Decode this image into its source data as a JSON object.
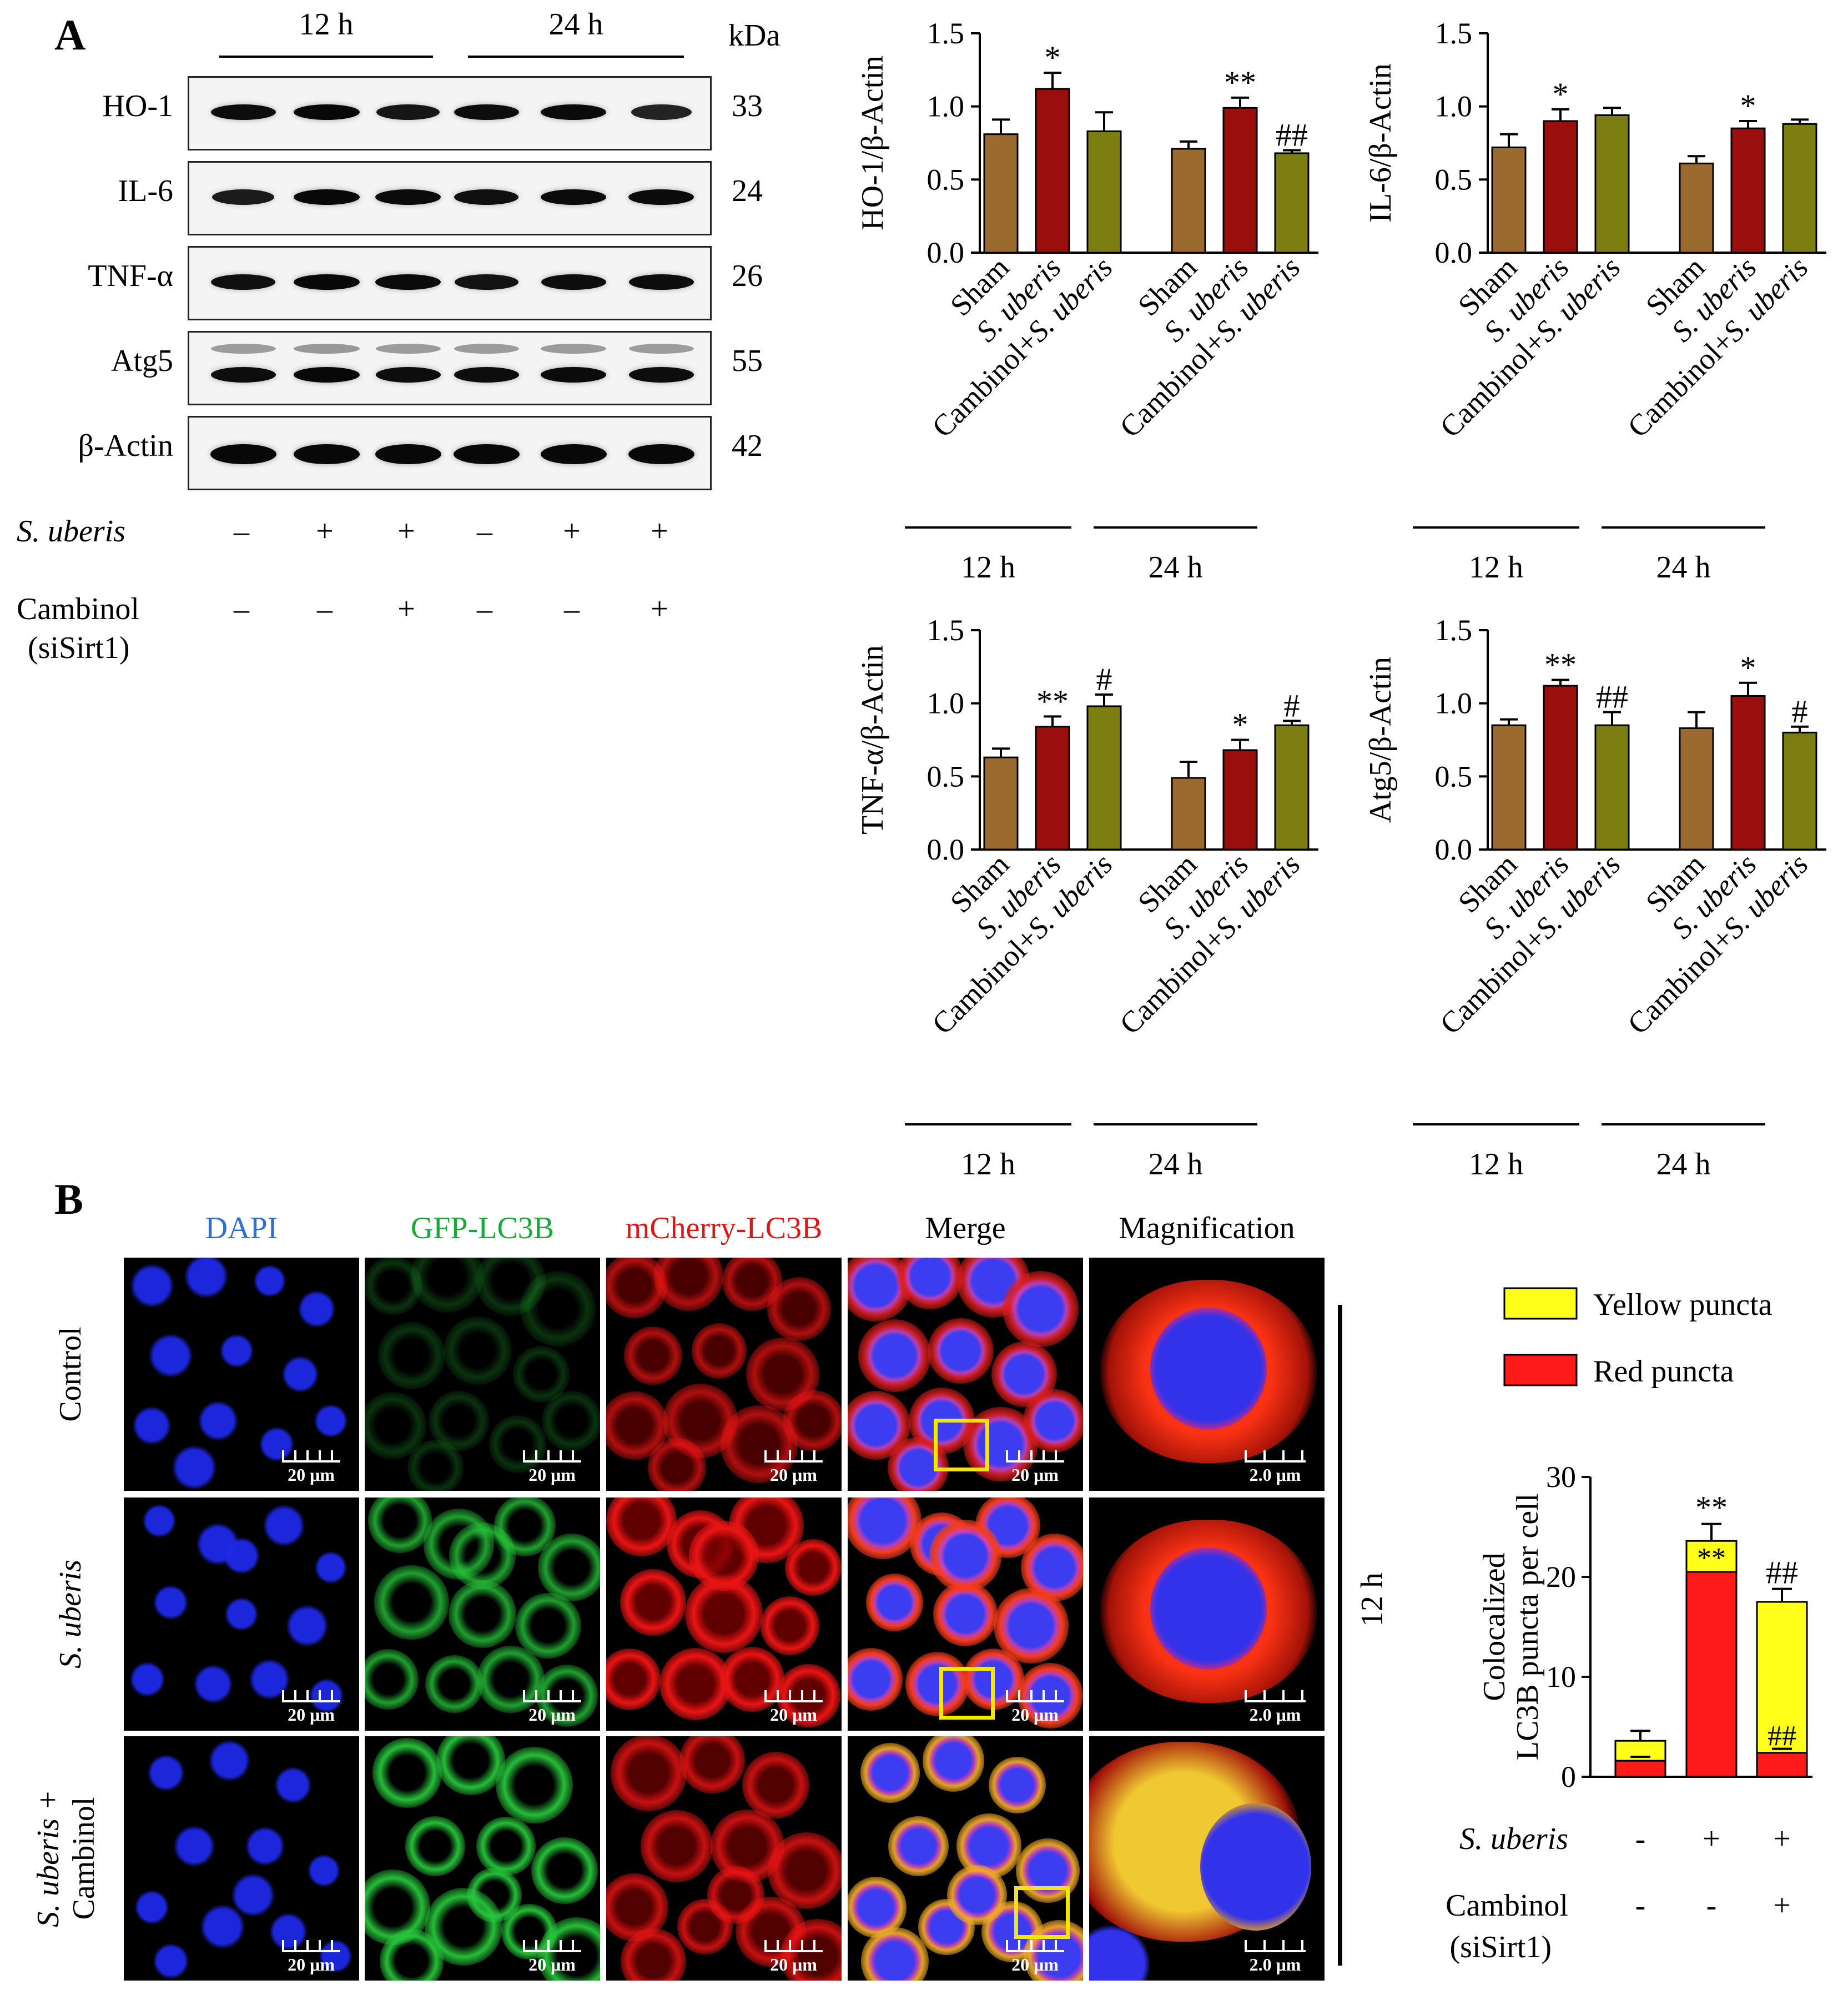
{
  "panel_a": {
    "letter": "A",
    "time_headers": [
      "12 h",
      "24 h"
    ],
    "kda_header": "kDa",
    "blots": [
      {
        "name": "HO-1",
        "kda": "33",
        "intensity": [
          0.85,
          0.95,
          0.7,
          0.85,
          0.9,
          0.45
        ]
      },
      {
        "name": "IL-6",
        "kda": "24",
        "intensity": [
          0.6,
          0.95,
          0.9,
          0.8,
          0.9,
          0.9
        ]
      },
      {
        "name": "TNF-α",
        "kda": "26",
        "intensity": [
          0.8,
          0.95,
          0.9,
          0.75,
          0.85,
          0.85
        ]
      },
      {
        "name": "Atg5",
        "kda": "55",
        "intensity": [
          0.85,
          0.95,
          0.85,
          0.85,
          0.9,
          0.85
        ]
      },
      {
        "name": "β-Actin",
        "kda": "42",
        "intensity": [
          0.95,
          0.95,
          0.95,
          0.95,
          0.95,
          0.95
        ]
      }
    ],
    "treatments": [
      {
        "label": "S. uberis",
        "italic": true,
        "signs": [
          "–",
          "+",
          "+",
          "–",
          "+",
          "+"
        ]
      },
      {
        "label": "Cambinol",
        "label2": "(siSirt1)",
        "italic": false,
        "signs": [
          "–",
          "–",
          "+",
          "–",
          "–",
          "+"
        ]
      }
    ]
  },
  "chart_data": [
    {
      "type": "bar",
      "ylabel": "HO-1/β-Actin",
      "ylim": [
        0,
        1.5
      ],
      "yticks": [
        "0.0",
        "0.5",
        "1.0",
        "1.5"
      ],
      "categories": [
        "Sham",
        "S. uberis",
        "Cambinol+S. uberis",
        "Sham",
        "S. uberis",
        "Cambinol+S. uberis"
      ],
      "groups": [
        "12 h",
        "24 h"
      ],
      "values": [
        0.81,
        1.12,
        0.83,
        0.71,
        0.99,
        0.68
      ],
      "errors": [
        0.1,
        0.11,
        0.13,
        0.05,
        0.07,
        0.02
      ],
      "annotations": [
        "",
        "*",
        "",
        "",
        "**",
        "##"
      ],
      "colors": [
        "#9b6a2f",
        "#9a0e0e",
        "#7d7e12",
        "#9b6a2f",
        "#9a0e0e",
        "#7d7e12"
      ]
    },
    {
      "type": "bar",
      "ylabel": "IL-6/β-Actin",
      "ylim": [
        0,
        1.5
      ],
      "yticks": [
        "0.0",
        "0.5",
        "1.0",
        "1.5"
      ],
      "categories": [
        "Sham",
        "S. uberis",
        "Cambinol+S. uberis",
        "Sham",
        "S. uberis",
        "Cambinol+S. uberis"
      ],
      "groups": [
        "12 h",
        "24 h"
      ],
      "values": [
        0.72,
        0.9,
        0.94,
        0.61,
        0.85,
        0.88
      ],
      "errors": [
        0.09,
        0.08,
        0.05,
        0.05,
        0.05,
        0.03
      ],
      "annotations": [
        "",
        "*",
        "",
        "",
        "*",
        ""
      ],
      "colors": [
        "#9b6a2f",
        "#9a0e0e",
        "#7d7e12",
        "#9b6a2f",
        "#9a0e0e",
        "#7d7e12"
      ]
    },
    {
      "type": "bar",
      "ylabel": "TNF-α/β-Actin",
      "ylim": [
        0,
        1.5
      ],
      "yticks": [
        "0.0",
        "0.5",
        "1.0",
        "1.5"
      ],
      "categories": [
        "Sham",
        "S. uberis",
        "Cambinol+S. uberis",
        "Sham",
        "S. uberis",
        "Cambinol+S. uberis"
      ],
      "groups": [
        "12 h",
        "24 h"
      ],
      "values": [
        0.63,
        0.84,
        0.98,
        0.49,
        0.68,
        0.85
      ],
      "errors": [
        0.06,
        0.07,
        0.08,
        0.11,
        0.07,
        0.03
      ],
      "annotations": [
        "",
        "**",
        "#",
        "",
        "*",
        "#"
      ],
      "colors": [
        "#9b6a2f",
        "#9a0e0e",
        "#7d7e12",
        "#9b6a2f",
        "#9a0e0e",
        "#7d7e12"
      ]
    },
    {
      "type": "bar",
      "ylabel": "Atg5/β-Actin",
      "ylim": [
        0,
        1.5
      ],
      "yticks": [
        "0.0",
        "0.5",
        "1.0",
        "1.5"
      ],
      "categories": [
        "Sham",
        "S. uberis",
        "Cambinol+S. uberis",
        "Sham",
        "S. uberis",
        "Cambinol+S. uberis"
      ],
      "groups": [
        "12 h",
        "24 h"
      ],
      "values": [
        0.85,
        1.12,
        0.85,
        0.83,
        1.05,
        0.8
      ],
      "errors": [
        0.04,
        0.04,
        0.09,
        0.11,
        0.09,
        0.04
      ],
      "annotations": [
        "",
        "**",
        "##",
        "",
        "*",
        "#"
      ],
      "colors": [
        "#9b6a2f",
        "#9a0e0e",
        "#7d7e12",
        "#9b6a2f",
        "#9a0e0e",
        "#7d7e12"
      ]
    },
    {
      "type": "bar",
      "stacked": true,
      "ylabel": "Colocalized",
      "ylabel2": "LC3B puncta per cell",
      "ylim": [
        0,
        30
      ],
      "yticks": [
        "0",
        "10",
        "20",
        "30"
      ],
      "series": [
        {
          "name": "Red puncta",
          "color": "#ff1a1a",
          "values": [
            1.6,
            20.5,
            2.4
          ],
          "errors": [
            0.4,
            0.0,
            0.4
          ],
          "annotations": [
            "",
            "**",
            "##"
          ]
        },
        {
          "name": "Yellow puncta",
          "color": "#ffff1a",
          "values": [
            2.0,
            3.1,
            15.1
          ],
          "errors": [
            1.0,
            1.7,
            1.3
          ],
          "annotations": [
            "",
            "**",
            "##"
          ]
        }
      ],
      "treatments": [
        {
          "label": "S. uberis",
          "signs": [
            "-",
            "+",
            "+"
          ]
        },
        {
          "label": "Cambinol",
          "label2": "(siSirt1)",
          "signs": [
            "-",
            "-",
            "+"
          ]
        }
      ]
    }
  ],
  "panel_b": {
    "letter": "B",
    "columns": [
      {
        "label": "DAPI",
        "color": "#2f6fd0"
      },
      {
        "label": "GFP-LC3B",
        "color": "#1aa83a"
      },
      {
        "label": "mCherry-LC3B",
        "color": "#e01515"
      },
      {
        "label": "Merge",
        "color": "#000000"
      },
      {
        "label": "Magnification",
        "color": "#000000"
      }
    ],
    "rows": [
      {
        "label": "Control",
        "italic": false
      },
      {
        "label": "S. uberis",
        "italic": true
      },
      {
        "label": "S. uberis +",
        "label2": "Cambinol",
        "italic": true
      }
    ],
    "scale_main": "20 μm",
    "scale_mag": "2.0 μm",
    "time_label": "12 h"
  }
}
